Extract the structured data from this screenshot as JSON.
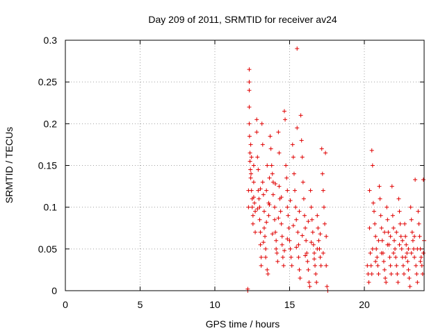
{
  "chart_data": {
    "type": "scatter",
    "title": "Day 209 of 2011, SRMTID for receiver av24",
    "xlabel": "GPS time / hours",
    "ylabel": "SRMTID / TECUs",
    "xlim": [
      0,
      24
    ],
    "ylim": [
      0,
      0.3
    ],
    "xticks": [
      0,
      5,
      10,
      15,
      20
    ],
    "xtick_labels": [
      "0",
      "5",
      "10",
      "15",
      "20"
    ],
    "yticks": [
      0,
      0.05,
      0.1,
      0.15,
      0.2,
      0.25,
      0.3
    ],
    "ytick_labels": [
      "0",
      "0.05",
      "0.1",
      "0.15",
      "0.2",
      "0.25",
      "0.3"
    ],
    "grid": true,
    "marker": "+",
    "marker_color": "#e00000",
    "series": [
      {
        "name": "SRMTID",
        "points": [
          [
            12.2,
            0.0
          ],
          [
            12.2,
            0.002
          ],
          [
            12.25,
            0.1
          ],
          [
            12.25,
            0.12
          ],
          [
            12.3,
            0.265
          ],
          [
            12.3,
            0.25
          ],
          [
            12.3,
            0.24
          ],
          [
            12.3,
            0.22
          ],
          [
            12.3,
            0.2
          ],
          [
            12.32,
            0.185
          ],
          [
            12.35,
            0.165
          ],
          [
            12.35,
            0.155
          ],
          [
            12.38,
            0.145
          ],
          [
            12.4,
            0.175
          ],
          [
            12.42,
            0.14
          ],
          [
            12.45,
            0.16
          ],
          [
            12.45,
            0.12
          ],
          [
            12.5,
            0.11
          ],
          [
            12.5,
            0.1
          ],
          [
            12.55,
            0.09
          ],
          [
            12.55,
            0.08
          ],
          [
            12.6,
            0.13
          ],
          [
            12.6,
            0.15
          ],
          [
            12.65,
            0.105
          ],
          [
            12.7,
            0.095
          ],
          [
            12.7,
            0.07
          ],
          [
            12.8,
            0.205
          ],
          [
            12.8,
            0.19
          ],
          [
            12.85,
            0.16
          ],
          [
            12.9,
            0.145
          ],
          [
            12.9,
            0.12
          ],
          [
            12.95,
            0.11
          ],
          [
            13.0,
            0.1
          ],
          [
            13.0,
            0.085
          ],
          [
            13.05,
            0.07
          ],
          [
            13.05,
            0.055
          ],
          [
            13.1,
            0.04
          ],
          [
            13.1,
            0.03
          ],
          [
            13.15,
            0.2
          ],
          [
            13.2,
            0.175
          ],
          [
            13.2,
            0.13
          ],
          [
            13.25,
            0.115
          ],
          [
            13.3,
            0.095
          ],
          [
            13.3,
            0.075
          ],
          [
            13.35,
            0.065
          ],
          [
            13.4,
            0.05
          ],
          [
            13.4,
            0.04
          ],
          [
            13.45,
            0.12
          ],
          [
            13.5,
            0.15
          ],
          [
            13.5,
            0.025
          ],
          [
            13.55,
            0.02
          ],
          [
            13.6,
            0.105
          ],
          [
            13.6,
            0.09
          ],
          [
            13.65,
            0.135
          ],
          [
            13.7,
            0.185
          ],
          [
            13.75,
            0.17
          ],
          [
            13.8,
            0.15
          ],
          [
            13.85,
            0.14
          ],
          [
            13.9,
            0.13
          ],
          [
            13.9,
            0.115
          ],
          [
            14.0,
            0.1
          ],
          [
            14.0,
            0.085
          ],
          [
            14.05,
            0.07
          ],
          [
            14.1,
            0.06
          ],
          [
            14.1,
            0.05
          ],
          [
            14.15,
            0.045
          ],
          [
            14.2,
            0.035
          ],
          [
            14.25,
            0.19
          ],
          [
            14.3,
            0.165
          ],
          [
            14.3,
            0.125
          ],
          [
            14.35,
            0.11
          ],
          [
            14.4,
            0.095
          ],
          [
            14.45,
            0.08
          ],
          [
            14.5,
            0.065
          ],
          [
            14.5,
            0.055
          ],
          [
            14.55,
            0.04
          ],
          [
            14.6,
            0.03
          ],
          [
            14.65,
            0.215
          ],
          [
            14.7,
            0.205
          ],
          [
            14.75,
            0.15
          ],
          [
            14.8,
            0.135
          ],
          [
            14.85,
            0.12
          ],
          [
            14.85,
            0.1
          ],
          [
            14.9,
            0.09
          ],
          [
            14.95,
            0.075
          ],
          [
            15.0,
            0.06
          ],
          [
            15.05,
            0.05
          ],
          [
            15.1,
            0.04
          ],
          [
            15.15,
            0.03
          ],
          [
            15.2,
            0.175
          ],
          [
            15.25,
            0.16
          ],
          [
            15.3,
            0.14
          ],
          [
            15.35,
            0.12
          ],
          [
            15.4,
            0.1
          ],
          [
            15.45,
            0.085
          ],
          [
            15.5,
            0.29
          ],
          [
            15.5,
            0.195
          ],
          [
            15.55,
            0.07
          ],
          [
            15.6,
            0.055
          ],
          [
            15.6,
            0.04
          ],
          [
            15.65,
            0.025
          ],
          [
            15.7,
            0.015
          ],
          [
            15.75,
            0.21
          ],
          [
            15.8,
            0.18
          ],
          [
            15.85,
            0.16
          ],
          [
            15.9,
            0.13
          ],
          [
            15.95,
            0.11
          ],
          [
            16.0,
            0.09
          ],
          [
            16.05,
            0.075
          ],
          [
            16.1,
            0.06
          ],
          [
            16.15,
            0.045
          ],
          [
            16.2,
            0.035
          ],
          [
            16.25,
            0.025
          ],
          [
            16.3,
            0.01
          ],
          [
            16.35,
            0.005
          ],
          [
            16.4,
            0.12
          ],
          [
            16.45,
            0.1
          ],
          [
            16.5,
            0.085
          ],
          [
            16.55,
            0.07
          ],
          [
            16.6,
            0.055
          ],
          [
            16.65,
            0.045
          ],
          [
            16.7,
            0.03
          ],
          [
            16.75,
            0.02
          ],
          [
            16.8,
            0.01
          ],
          [
            16.85,
            0.09
          ],
          [
            16.9,
            0.075
          ],
          [
            16.95,
            0.06
          ],
          [
            17.0,
            0.05
          ],
          [
            17.05,
            0.04
          ],
          [
            17.1,
            0.03
          ],
          [
            17.15,
            0.17
          ],
          [
            17.2,
            0.14
          ],
          [
            17.25,
            0.12
          ],
          [
            17.3,
            0.1
          ],
          [
            17.35,
            0.08
          ],
          [
            17.4,
            0.165
          ],
          [
            17.45,
            0.065
          ],
          [
            17.5,
            0.005
          ],
          [
            17.55,
            0.0
          ],
          [
            20.2,
            0.03
          ],
          [
            20.25,
            0.02
          ],
          [
            20.3,
            0.01
          ],
          [
            20.35,
            0.12
          ],
          [
            20.4,
            0.045
          ],
          [
            20.45,
            0.03
          ],
          [
            20.5,
            0.168
          ],
          [
            20.5,
            0.02
          ],
          [
            20.55,
            0.15
          ],
          [
            20.6,
            0.105
          ],
          [
            20.65,
            0.095
          ],
          [
            20.7,
            0.08
          ],
          [
            20.75,
            0.065
          ],
          [
            20.8,
            0.05
          ],
          [
            20.85,
            0.04
          ],
          [
            20.9,
            0.03
          ],
          [
            20.95,
            0.02
          ],
          [
            21.0,
            0.125
          ],
          [
            21.05,
            0.11
          ],
          [
            21.1,
            0.09
          ],
          [
            21.15,
            0.075
          ],
          [
            21.2,
            0.06
          ],
          [
            21.25,
            0.045
          ],
          [
            21.3,
            0.035
          ],
          [
            21.35,
            0.025
          ],
          [
            21.4,
            0.015
          ],
          [
            21.45,
            0.01
          ],
          [
            21.5,
            0.1
          ],
          [
            21.55,
            0.085
          ],
          [
            21.6,
            0.07
          ],
          [
            21.65,
            0.055
          ],
          [
            21.7,
            0.04
          ],
          [
            21.75,
            0.03
          ],
          [
            21.8,
            0.02
          ],
          [
            21.85,
            0.125
          ],
          [
            21.9,
            0.09
          ],
          [
            21.95,
            0.075
          ],
          [
            22.0,
            0.06
          ],
          [
            22.05,
            0.05
          ],
          [
            22.1,
            0.04
          ],
          [
            22.15,
            0.03
          ],
          [
            22.2,
            0.02
          ],
          [
            22.25,
            0.01
          ],
          [
            22.3,
            0.11
          ],
          [
            22.35,
            0.095
          ],
          [
            22.4,
            0.08
          ],
          [
            22.45,
            0.065
          ],
          [
            22.5,
            0.05
          ],
          [
            22.55,
            0.04
          ],
          [
            22.6,
            0.03
          ],
          [
            22.65,
            0.02
          ],
          [
            22.7,
            0.08
          ],
          [
            22.75,
            0.065
          ],
          [
            22.8,
            0.055
          ],
          [
            22.85,
            0.045
          ],
          [
            22.9,
            0.035
          ],
          [
            22.95,
            0.025
          ],
          [
            23.0,
            0.015
          ],
          [
            23.05,
            0.005
          ],
          [
            23.1,
            0.1
          ],
          [
            23.15,
            0.085
          ],
          [
            23.2,
            0.07
          ],
          [
            23.25,
            0.06
          ],
          [
            23.3,
            0.05
          ],
          [
            23.35,
            0.04
          ],
          [
            23.4,
            0.133
          ],
          [
            23.45,
            0.03
          ],
          [
            23.5,
            0.02
          ],
          [
            23.55,
            0.01
          ],
          [
            23.6,
            0.095
          ],
          [
            23.65,
            0.08
          ],
          [
            23.7,
            0.065
          ],
          [
            23.75,
            0.05
          ],
          [
            23.8,
            0.04
          ],
          [
            23.85,
            0.03
          ],
          [
            23.9,
            0.02
          ],
          [
            23.95,
            0.133
          ],
          [
            24.0,
            0.06
          ],
          [
            12.4,
            0.135
          ],
          [
            12.6,
            0.112
          ],
          [
            12.85,
            0.098
          ],
          [
            13.05,
            0.122
          ],
          [
            13.25,
            0.058
          ],
          [
            13.45,
            0.082
          ],
          [
            13.65,
            0.103
          ],
          [
            13.85,
            0.068
          ],
          [
            14.05,
            0.128
          ],
          [
            14.25,
            0.087
          ],
          [
            14.45,
            0.112
          ],
          [
            14.65,
            0.048
          ],
          [
            14.85,
            0.062
          ],
          [
            15.05,
            0.108
          ],
          [
            15.25,
            0.078
          ],
          [
            15.45,
            0.052
          ],
          [
            15.65,
            0.095
          ],
          [
            15.85,
            0.066
          ],
          [
            16.05,
            0.042
          ],
          [
            16.25,
            0.083
          ],
          [
            16.45,
            0.058
          ],
          [
            16.65,
            0.038
          ],
          [
            16.85,
            0.05
          ],
          [
            17.05,
            0.068
          ],
          [
            17.25,
            0.045
          ],
          [
            17.45,
            0.03
          ],
          [
            20.35,
            0.075
          ],
          [
            20.55,
            0.05
          ],
          [
            20.75,
            0.035
          ],
          [
            20.95,
            0.06
          ],
          [
            21.15,
            0.045
          ],
          [
            21.35,
            0.07
          ],
          [
            21.55,
            0.055
          ],
          [
            21.75,
            0.065
          ],
          [
            21.95,
            0.045
          ],
          [
            22.15,
            0.07
          ],
          [
            22.35,
            0.055
          ],
          [
            22.55,
            0.06
          ],
          [
            22.75,
            0.04
          ],
          [
            22.95,
            0.05
          ],
          [
            23.15,
            0.045
          ],
          [
            23.35,
            0.065
          ],
          [
            23.55,
            0.05
          ],
          [
            23.75,
            0.035
          ],
          [
            23.95,
            0.045
          ]
        ]
      }
    ]
  }
}
